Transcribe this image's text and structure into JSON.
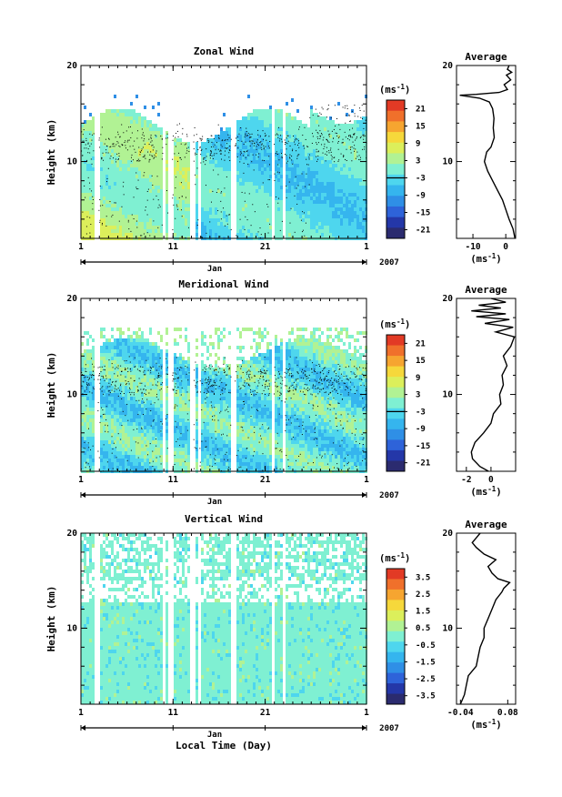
{
  "figure": {
    "xlabel": "Local Time (Day)",
    "unit_label": "(ms",
    "unit_exp": "-1",
    "unit_close": ")",
    "colormap": [
      "#2b2b6f",
      "#2437a8",
      "#2e63d9",
      "#2f8fe6",
      "#35b5ee",
      "#4ed6ee",
      "#7ff0d2",
      "#b1f294",
      "#dcef5b",
      "#f6d83b",
      "#f6a530",
      "#f0702b",
      "#e23a25"
    ]
  },
  "chart_data": [
    {
      "type": "heatmap",
      "title": "Zonal Wind",
      "ylabel": "Height (km)",
      "ylim": [
        2,
        20
      ],
      "yticks": [
        "10",
        "20"
      ],
      "xticks": [
        "1",
        "11",
        "21",
        "1"
      ],
      "month_label": "Jan",
      "year_label": "2007",
      "colorbar": {
        "ticks": [
          "21",
          "15",
          "9",
          "3",
          "-3",
          "-9",
          "-15",
          "-21"
        ],
        "zero_line": 0
      },
      "profile": {
        "title": "Average",
        "xticks": [
          "-10",
          "0"
        ],
        "xlim": [
          -15,
          3
        ],
        "yticks": [
          "10",
          "20"
        ],
        "unit_label": "(ms",
        "unit_exp": "-1",
        "unit_close": ")",
        "points": [
          [
            2.8,
            2
          ],
          [
            2.2,
            3
          ],
          [
            1,
            4
          ],
          [
            0,
            5
          ],
          [
            -1,
            6
          ],
          [
            -2.5,
            7
          ],
          [
            -4,
            8
          ],
          [
            -5.5,
            9
          ],
          [
            -6.5,
            10
          ],
          [
            -5.8,
            11
          ],
          [
            -4.5,
            11.5
          ],
          [
            -3.5,
            12.5
          ],
          [
            -3.8,
            13.5
          ],
          [
            -3.6,
            14.5
          ],
          [
            -4,
            15.5
          ],
          [
            -5,
            16.2
          ],
          [
            -8,
            16.6
          ],
          [
            -14,
            16.9
          ],
          [
            -9,
            17
          ],
          [
            -2,
            17.2
          ],
          [
            0.5,
            17.5
          ],
          [
            -0.5,
            18
          ],
          [
            1.5,
            18.5
          ],
          [
            0.2,
            19
          ],
          [
            1.8,
            19.3
          ],
          [
            0.5,
            19.6
          ],
          [
            1,
            20
          ]
        ]
      }
    },
    {
      "type": "heatmap",
      "title": "Meridional Wind",
      "ylabel": "Height (km)",
      "ylim": [
        2,
        20
      ],
      "yticks": [
        "10",
        "20"
      ],
      "xticks": [
        "1",
        "11",
        "21",
        "1"
      ],
      "month_label": "Jan",
      "year_label": "2007",
      "colorbar": {
        "ticks": [
          "21",
          "15",
          "9",
          "3",
          "-3",
          "-9",
          "-15",
          "-21"
        ],
        "zero_line": 0
      },
      "profile": {
        "title": "Average",
        "xticks": [
          "-2",
          "0"
        ],
        "xlim": [
          -2.8,
          2
        ],
        "yticks": [
          "10",
          "20"
        ],
        "unit_label": "(ms",
        "unit_exp": "-1",
        "unit_close": ")",
        "points": [
          [
            -0.2,
            2
          ],
          [
            -0.9,
            2.5
          ],
          [
            -1.5,
            3.3
          ],
          [
            -1.6,
            4
          ],
          [
            -1.3,
            5
          ],
          [
            -0.6,
            6
          ],
          [
            0,
            7
          ],
          [
            0.2,
            8
          ],
          [
            0.8,
            9
          ],
          [
            0.7,
            10
          ],
          [
            1.0,
            11
          ],
          [
            0.9,
            12
          ],
          [
            1.3,
            13
          ],
          [
            1.0,
            14
          ],
          [
            1.6,
            15
          ],
          [
            1.9,
            16
          ],
          [
            0.4,
            16.5
          ],
          [
            1.8,
            17
          ],
          [
            -0.5,
            17.4
          ],
          [
            1.5,
            17.8
          ],
          [
            -1.2,
            18.1
          ],
          [
            1.2,
            18.4
          ],
          [
            -1.6,
            18.7
          ],
          [
            0.8,
            19
          ],
          [
            -1.0,
            19.3
          ],
          [
            1.2,
            19.6
          ],
          [
            0,
            20
          ]
        ]
      }
    },
    {
      "type": "heatmap",
      "title": "Vertical Wind",
      "ylabel": "Height (km)",
      "ylim": [
        2,
        20
      ],
      "yticks": [
        "10",
        "20"
      ],
      "xticks": [
        "1",
        "11",
        "21",
        "1"
      ],
      "month_label": "Jan",
      "year_label": "2007",
      "colorbar": {
        "ticks": [
          "3.5",
          "2.5",
          "1.5",
          "0.5",
          "-0.5",
          "-1.5",
          "-2.5",
          "-3.5"
        ],
        "zero_line": null
      },
      "profile": {
        "title": "Average",
        "xticks": [
          "-0.04",
          "0.08"
        ],
        "xlim": [
          -0.05,
          0.1
        ],
        "yticks": [
          "10",
          "20"
        ],
        "unit_label": "(ms",
        "unit_exp": "-1",
        "unit_close": ")",
        "points": [
          [
            -0.04,
            2
          ],
          [
            -0.03,
            3
          ],
          [
            -0.025,
            4
          ],
          [
            -0.02,
            5
          ],
          [
            0.0,
            6
          ],
          [
            0.005,
            7
          ],
          [
            0.01,
            8
          ],
          [
            0.02,
            9
          ],
          [
            0.02,
            10
          ],
          [
            0.03,
            11
          ],
          [
            0.04,
            12
          ],
          [
            0.05,
            13
          ],
          [
            0.065,
            13.8
          ],
          [
            0.07,
            14.2
          ],
          [
            0.085,
            14.8
          ],
          [
            0.055,
            15.2
          ],
          [
            0.04,
            15.8
          ],
          [
            0.03,
            16.5
          ],
          [
            0.05,
            17.2
          ],
          [
            0.02,
            17.8
          ],
          [
            0.0,
            18.5
          ],
          [
            -0.01,
            19
          ],
          [
            0.0,
            19.5
          ],
          [
            0.01,
            20
          ]
        ]
      }
    }
  ]
}
